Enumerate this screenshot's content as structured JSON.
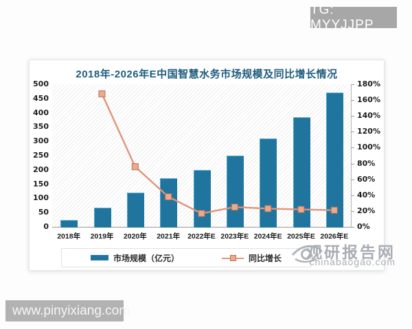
{
  "overlays": {
    "tg_badge": "TG: MYYJJPP",
    "site_badge": "www.pinyixiang.com"
  },
  "watermark": {
    "name": "观研报告网",
    "domain": "chinabaogao.com"
  },
  "chart_data": {
    "type": "bar",
    "title": "2018年-2026年E中国智慧水务市场规模及同比增长情况",
    "categories": [
      "2018年",
      "2019年",
      "2020年",
      "2021年",
      "2022年E",
      "2023年E",
      "2024年E",
      "2025年E",
      "2026年E"
    ],
    "series": [
      {
        "name": "市场规模（亿元）",
        "type": "bar",
        "axis": "left",
        "color": "#20759e",
        "values": [
          25,
          67,
          120,
          170,
          200,
          250,
          310,
          385,
          470
        ]
      },
      {
        "name": "同比增长",
        "type": "line",
        "axis": "right",
        "color": "#df9478",
        "marker_fill": "#eda98c",
        "marker_stroke": "#b5705b",
        "unit": "%",
        "values": [
          null,
          168,
          76,
          38,
          17,
          25,
          23,
          22,
          21
        ]
      }
    ],
    "left_axis": {
      "min": 0,
      "max": 500,
      "step": 50
    },
    "right_axis": {
      "min": 0,
      "max": 180,
      "step": 20,
      "suffix": "%"
    },
    "legend_position": "bottom",
    "grid": false
  }
}
